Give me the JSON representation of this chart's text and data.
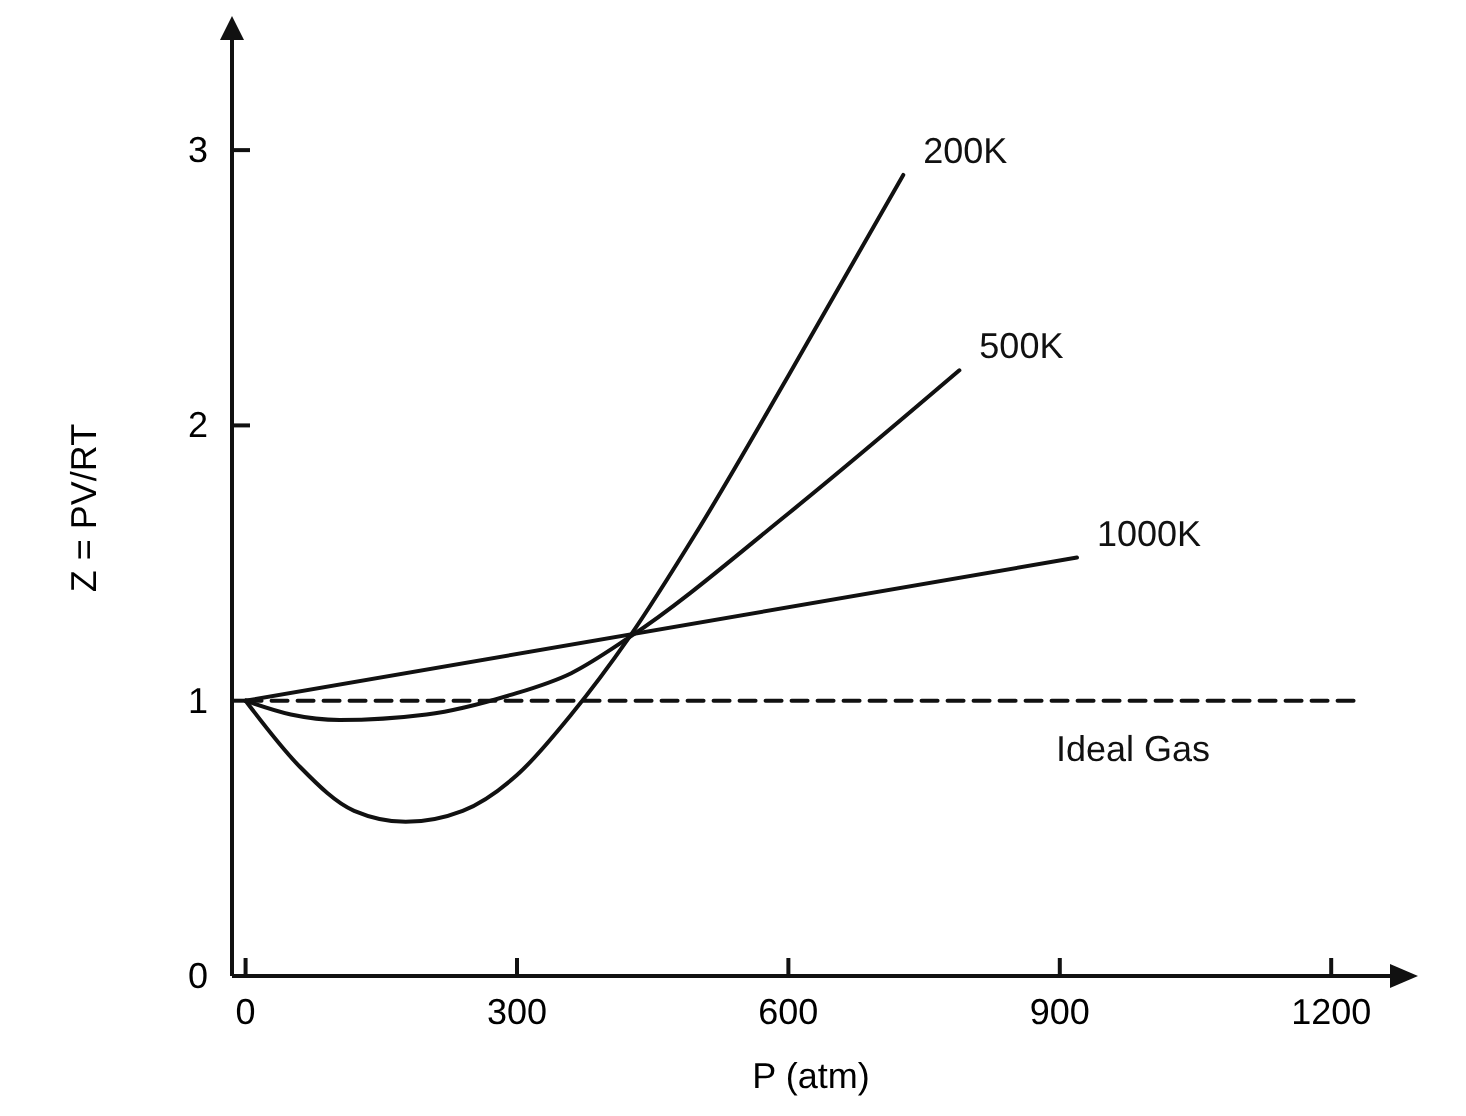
{
  "chart_data": {
    "type": "line",
    "xlabel": "P (atm)",
    "ylabel": "Z = PV/RT",
    "xlim": [
      -15,
      1265
    ],
    "ylim": [
      0,
      3.4
    ],
    "xticks": [
      0,
      300,
      600,
      900,
      1200
    ],
    "yticks": [
      0,
      1,
      2,
      3
    ],
    "grid": false,
    "marker": "none",
    "series": [
      {
        "name": "200K",
        "color": "#111111",
        "line_style": "solid",
        "x": [
          0,
          60,
          120,
          177,
          240,
          300,
          360,
          424,
          500,
          600,
          727
        ],
        "values": [
          1,
          0.76,
          0.6,
          0.56,
          0.6,
          0.73,
          0.95,
          1.23,
          1.62,
          2.18,
          2.91
        ]
      },
      {
        "name": "500K",
        "color": "#111111",
        "line_style": "solid",
        "x": [
          0,
          50,
          104,
          200,
          292,
          360,
          424,
          600,
          789
        ],
        "values": [
          1,
          0.95,
          0.93,
          0.95,
          1.02,
          1.1,
          1.23,
          1.68,
          2.2
        ]
      },
      {
        "name": "1000K",
        "color": "#111111",
        "line_style": "solid",
        "x": [
          0,
          919
        ],
        "values": [
          1,
          1.52
        ]
      },
      {
        "name": "Ideal Gas",
        "color": "#111111",
        "line_style": "dashed",
        "x": [
          0,
          1232
        ],
        "values": [
          1,
          1
        ]
      }
    ]
  }
}
